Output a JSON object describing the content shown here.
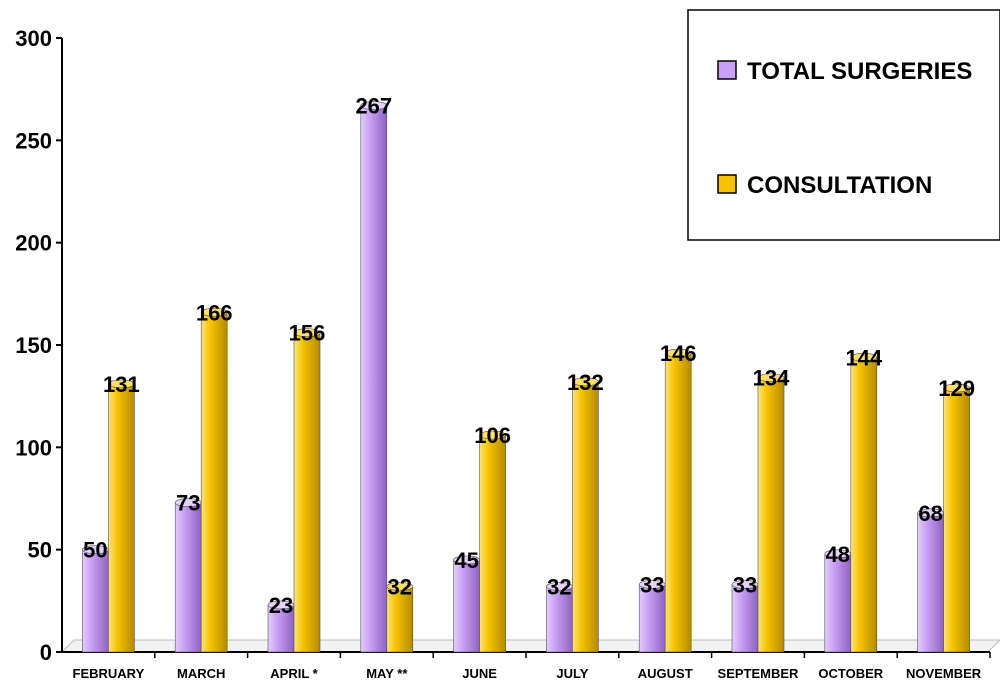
{
  "chart_data": {
    "type": "bar",
    "title": "",
    "xlabel": "",
    "ylabel": "",
    "ylim": [
      0,
      300
    ],
    "yticks": [
      0,
      50,
      100,
      150,
      200,
      250,
      300
    ],
    "grid": false,
    "legend_position": "top-right",
    "categories": [
      "FEBRUARY",
      "MARCH",
      "APRIL *",
      "MAY **",
      "JUNE",
      "JULY",
      "AUGUST",
      "SEPTEMBER",
      "OCTOBER",
      "NOVEMBER"
    ],
    "series": [
      {
        "name": "TOTAL SURGERIES",
        "color": "#c9a0f5",
        "values": [
          50,
          73,
          23,
          267,
          45,
          32,
          33,
          33,
          48,
          68
        ]
      },
      {
        "name": "CONSULTATION",
        "color": "#f5c200",
        "values": [
          131,
          166,
          156,
          32,
          106,
          132,
          146,
          134,
          144,
          129
        ]
      }
    ]
  }
}
